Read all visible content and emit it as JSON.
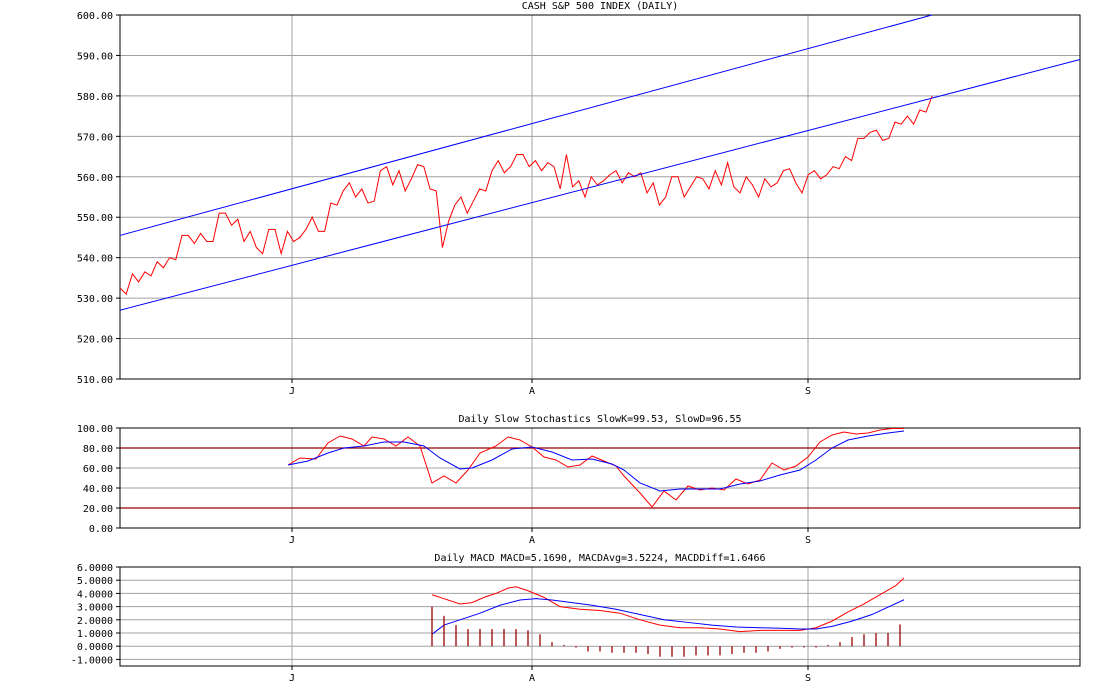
{
  "chart_data": [
    {
      "type": "line",
      "title": "CASH S&P 500 INDEX (DAILY)",
      "ylim": [
        510,
        600
      ],
      "y_ticks": [
        510,
        520,
        530,
        540,
        550,
        560,
        570,
        580,
        590,
        600
      ],
      "y_tick_labels": [
        "510.00",
        "520.00",
        "530.00",
        "540.00",
        "550.00",
        "560.00",
        "570.00",
        "580.00",
        "590.00",
        "600.00"
      ],
      "x_labels": [
        {
          "label": "J",
          "x": 43
        },
        {
          "label": "A",
          "x": 103
        },
        {
          "label": "S",
          "x": 172
        }
      ],
      "xlim": [
        0,
        240
      ],
      "grid": true,
      "series": [
        {
          "color": "#ff0000",
          "values": [
            532.5,
            531,
            536,
            534,
            536.5,
            535.5,
            539,
            537.5,
            540,
            539.5,
            545.5,
            545.5,
            543.5,
            546,
            544,
            544,
            551,
            551,
            548,
            549.5,
            544,
            546.5,
            542.5,
            541,
            547,
            547,
            541,
            546.5,
            544,
            545,
            547,
            550,
            546.5,
            546.5,
            553.5,
            553,
            556.5,
            558.5,
            555,
            557,
            553.5,
            554,
            561.5,
            562.5,
            558,
            561.5,
            556.5,
            559.5,
            563,
            562.5,
            557,
            556.5,
            542.5,
            549,
            553,
            555,
            551,
            554,
            557,
            556.5,
            561.5,
            564,
            561,
            562.5,
            565.5,
            565.5,
            562.5,
            564,
            561.5,
            563.5,
            562.5,
            557,
            565.5,
            557.5,
            559,
            555,
            560,
            558,
            559,
            560.5,
            561.5,
            558.5,
            561,
            560,
            561,
            556,
            558.5,
            553,
            555,
            560,
            560,
            555,
            557.5,
            560,
            559.5,
            557,
            561.5,
            558,
            563.5,
            557.5,
            556,
            560,
            558,
            555,
            559.5,
            557.5,
            558.5,
            561.5,
            562,
            558.5,
            556,
            560.5,
            561.5,
            559.5,
            560.5,
            562.5,
            562,
            565,
            564,
            569.5,
            569.5,
            571,
            571.5,
            569,
            569.5,
            573.5,
            573,
            575,
            573,
            576.5,
            576,
            580
          ]
        },
        {
          "color": "#0000ff",
          "from": [
            0,
            545.5
          ],
          "to": [
            203,
            600
          ]
        },
        {
          "color": "#0000ff",
          "from": [
            0,
            527
          ],
          "to": [
            240,
            589
          ]
        }
      ]
    },
    {
      "type": "line",
      "title": "Daily Slow Stochastics SlowK=99.53, SlowD=96.55",
      "ylim": [
        0,
        100
      ],
      "y_ticks": [
        0,
        20,
        40,
        60,
        80,
        100
      ],
      "y_tick_labels": [
        "0.00",
        "20.00",
        "40.00",
        "60.00",
        "80.00",
        "100.00"
      ],
      "x_labels": [
        {
          "label": "J",
          "x": 43
        },
        {
          "label": "A",
          "x": 103
        },
        {
          "label": "S",
          "x": 172
        }
      ],
      "xlim": [
        0,
        240
      ],
      "reference_lines": [
        20,
        80
      ],
      "series": [
        {
          "name": "SlowK",
          "color": "#ff0000",
          "points": [
            [
              42,
              63
            ],
            [
              45,
              70
            ],
            [
              49,
              69
            ],
            [
              52,
              85
            ],
            [
              55,
              92
            ],
            [
              58,
              89
            ],
            [
              61,
              82
            ],
            [
              63,
              91
            ],
            [
              66,
              89
            ],
            [
              69,
              82
            ],
            [
              72,
              91
            ],
            [
              75,
              82
            ],
            [
              78,
              45
            ],
            [
              81,
              52
            ],
            [
              84,
              45
            ],
            [
              87,
              58
            ],
            [
              90,
              75
            ],
            [
              94,
              82
            ],
            [
              97,
              91
            ],
            [
              100,
              88
            ],
            [
              103,
              81
            ],
            [
              106,
              71
            ],
            [
              109,
              68
            ],
            [
              112,
              61
            ],
            [
              115,
              63
            ],
            [
              118,
              72
            ],
            [
              121,
              67
            ],
            [
              124,
              62
            ],
            [
              126,
              52
            ],
            [
              130,
              35
            ],
            [
              133,
              21
            ],
            [
              136,
              37
            ],
            [
              139,
              28
            ],
            [
              142,
              42
            ],
            [
              145,
              38
            ],
            [
              148,
              40
            ],
            [
              151,
              38
            ],
            [
              154,
              49
            ],
            [
              157,
              44
            ],
            [
              160,
              48
            ],
            [
              163,
              65
            ],
            [
              166,
              58
            ],
            [
              169,
              62
            ],
            [
              172,
              71
            ],
            [
              175,
              86
            ],
            [
              178,
              93
            ],
            [
              181,
              96
            ],
            [
              184,
              94
            ],
            [
              187,
              95
            ],
            [
              190,
              98
            ],
            [
              193,
              99.5
            ],
            [
              196,
              99.5
            ]
          ]
        },
        {
          "name": "SlowD",
          "color": "#0000ff",
          "points": [
            [
              42,
              63
            ],
            [
              47,
              67
            ],
            [
              52,
              75
            ],
            [
              56,
              80
            ],
            [
              61,
              82
            ],
            [
              66,
              86
            ],
            [
              71,
              86
            ],
            [
              76,
              82
            ],
            [
              80,
              70
            ],
            [
              85,
              59
            ],
            [
              88,
              60
            ],
            [
              93,
              68
            ],
            [
              98,
              79
            ],
            [
              103,
              81
            ],
            [
              108,
              76
            ],
            [
              113,
              68
            ],
            [
              118,
              69
            ],
            [
              123,
              64
            ],
            [
              126,
              58
            ],
            [
              130,
              45
            ],
            [
              135,
              37
            ],
            [
              140,
              39
            ],
            [
              145,
              39
            ],
            [
              150,
              39
            ],
            [
              155,
              44
            ],
            [
              160,
              47
            ],
            [
              165,
              53
            ],
            [
              170,
              58
            ],
            [
              174,
              68
            ],
            [
              178,
              80
            ],
            [
              182,
              88
            ],
            [
              187,
              92
            ],
            [
              192,
              95
            ],
            [
              196,
              97
            ]
          ]
        }
      ]
    },
    {
      "type": "bar",
      "title": "Daily MACD MACD=5.1690, MACDAvg=3.5224, MACDDiff=1.6466",
      "ylim": [
        -1.5,
        6
      ],
      "y_ticks": [
        -1,
        0,
        1,
        2,
        3,
        4,
        5,
        6
      ],
      "y_tick_labels": [
        "-1.0000",
        "0.0000",
        "1.0000",
        "2.0000",
        "3.0000",
        "4.0000",
        "5.0000",
        "6.0000"
      ],
      "x_labels": [
        {
          "label": "J",
          "x": 43
        },
        {
          "label": "A",
          "x": 103
        },
        {
          "label": "S",
          "x": 172
        }
      ],
      "xlim": [
        0,
        240
      ],
      "series": [
        {
          "name": "MACD",
          "color": "#ff0000",
          "points": [
            [
              78,
              3.9
            ],
            [
              81,
              3.6
            ],
            [
              85,
              3.2
            ],
            [
              88,
              3.3
            ],
            [
              91,
              3.7
            ],
            [
              94,
              4.0
            ],
            [
              97,
              4.4
            ],
            [
              99,
              4.5
            ],
            [
              102,
              4.2
            ],
            [
              106,
              3.7
            ],
            [
              110,
              3.0
            ],
            [
              115,
              2.8
            ],
            [
              120,
              2.7
            ],
            [
              125,
              2.5
            ],
            [
              130,
              2.0
            ],
            [
              135,
              1.6
            ],
            [
              140,
              1.4
            ],
            [
              145,
              1.4
            ],
            [
              150,
              1.3
            ],
            [
              155,
              1.1
            ],
            [
              160,
              1.2
            ],
            [
              165,
              1.2
            ],
            [
              170,
              1.2
            ],
            [
              174,
              1.4
            ],
            [
              178,
              1.9
            ],
            [
              182,
              2.6
            ],
            [
              186,
              3.2
            ],
            [
              190,
              3.9
            ],
            [
              194,
              4.6
            ],
            [
              196,
              5.17
            ]
          ]
        },
        {
          "name": "MACDAvg",
          "color": "#0000ff",
          "points": [
            [
              78,
              0.9
            ],
            [
              81,
              1.6
            ],
            [
              85,
              2.0
            ],
            [
              90,
              2.5
            ],
            [
              95,
              3.1
            ],
            [
              100,
              3.5
            ],
            [
              104,
              3.6
            ],
            [
              108,
              3.5
            ],
            [
              113,
              3.3
            ],
            [
              118,
              3.1
            ],
            [
              124,
              2.8
            ],
            [
              130,
              2.4
            ],
            [
              136,
              2.0
            ],
            [
              142,
              1.8
            ],
            [
              148,
              1.6
            ],
            [
              154,
              1.45
            ],
            [
              160,
              1.4
            ],
            [
              166,
              1.35
            ],
            [
              170,
              1.3
            ],
            [
              174,
              1.3
            ],
            [
              178,
              1.5
            ],
            [
              183,
              1.9
            ],
            [
              188,
              2.4
            ],
            [
              193,
              3.1
            ],
            [
              196,
              3.52
            ]
          ]
        },
        {
          "name": "MACDDiff",
          "color": "#990000",
          "x": [
            78,
            81,
            84,
            87,
            90,
            93,
            96,
            99,
            102,
            105,
            108,
            111,
            114,
            117,
            120,
            123,
            126,
            129,
            132,
            135,
            138,
            141,
            144,
            147,
            150,
            153,
            156,
            159,
            162,
            165,
            168,
            171,
            174,
            177,
            180,
            183,
            186,
            189,
            192,
            195
          ],
          "values": [
            3.0,
            2.3,
            1.6,
            1.3,
            1.3,
            1.3,
            1.3,
            1.3,
            1.2,
            0.9,
            0.3,
            0.1,
            -0.1,
            -0.4,
            -0.4,
            -0.5,
            -0.5,
            -0.5,
            -0.6,
            -0.8,
            -0.8,
            -0.8,
            -0.7,
            -0.7,
            -0.7,
            -0.6,
            -0.5,
            -0.5,
            -0.4,
            -0.2,
            -0.1,
            -0.1,
            -0.1,
            0.1,
            0.3,
            0.7,
            0.9,
            1.0,
            1.0,
            1.65
          ]
        }
      ]
    }
  ]
}
